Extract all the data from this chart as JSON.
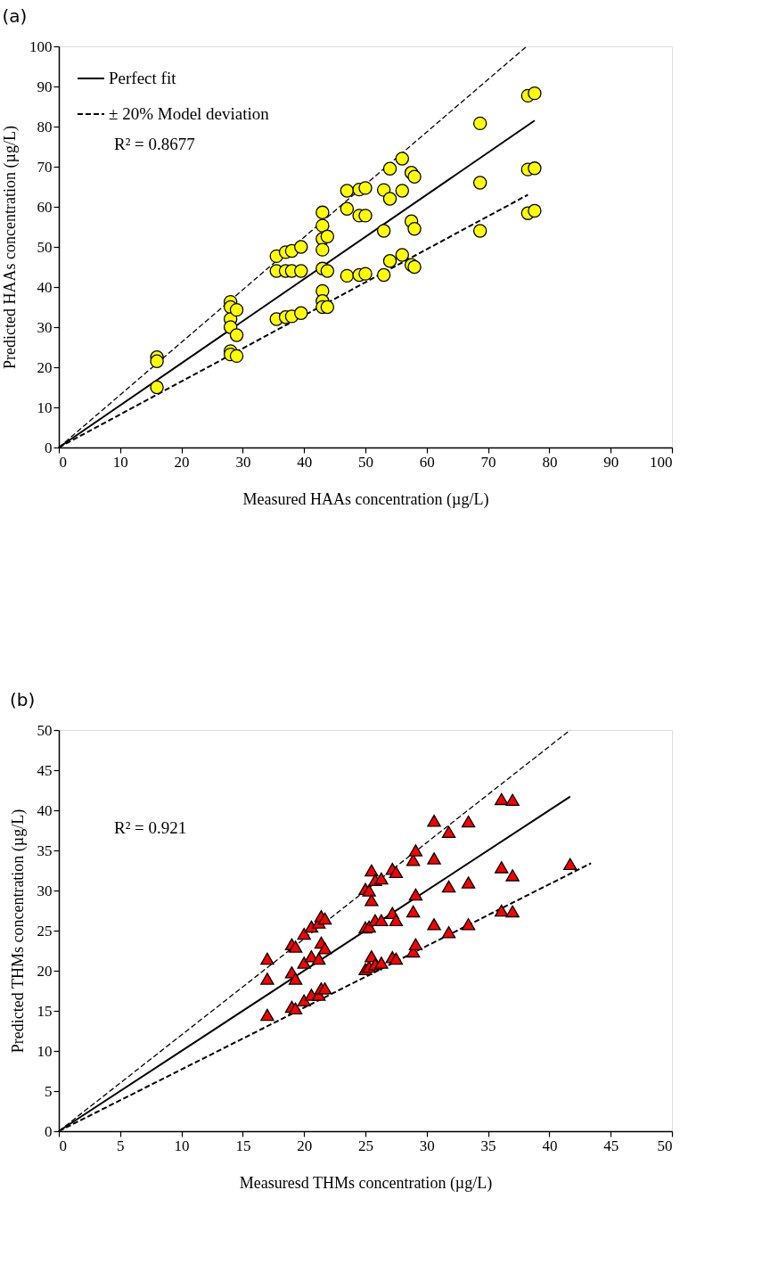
{
  "chart_data": [
    {
      "type": "scatter",
      "title": "(a)",
      "xlabel": "Measured HAAs concentration (µg/L)",
      "ylabel": "Predicted HAAs concentration (µg/L)",
      "xlim": [
        0,
        100
      ],
      "ylim": [
        0,
        100
      ],
      "xticks": [
        0,
        10,
        20,
        30,
        40,
        50,
        60,
        70,
        80,
        90,
        100
      ],
      "yticks": [
        0,
        10,
        20,
        30,
        40,
        50,
        60,
        70,
        80,
        90,
        100
      ],
      "grid": false,
      "legend": "top left",
      "annotations": [
        "R² = 0.8677"
      ],
      "series": [
        {
          "name": "Perfect fit",
          "type": "line",
          "color": "#000000",
          "line_style": "solid",
          "x": [
            0,
            77.6
          ],
          "values": [
            0,
            81.5
          ]
        },
        {
          "name": "± 20% Model deviation",
          "type": "line",
          "color": "#000000",
          "line_style": "dashed",
          "x": [
            0,
            76.5
          ],
          "values": [
            0,
            63
          ]
        },
        {
          "type": "line",
          "color": "#000000",
          "line_style": "dashed",
          "x": [
            0,
            76.3
          ],
          "values": [
            0,
            100
          ]
        },
        {
          "color": "#ffff00",
          "marker": "circle",
          "x": [
            16,
            16,
            16,
            28,
            28,
            28,
            28,
            28,
            28,
            29,
            29,
            29,
            35.5,
            35.5,
            35.5,
            37,
            37,
            37,
            38,
            38,
            38,
            39.5,
            39.5,
            39.5,
            43,
            43,
            43,
            43,
            43,
            43,
            43,
            43,
            43.8,
            43.8,
            43.8,
            47,
            47,
            47,
            49,
            49,
            49,
            50,
            50,
            50,
            53,
            53,
            53,
            54,
            54,
            54,
            56,
            56,
            56,
            57.5,
            57.5,
            57.5,
            58,
            58,
            58,
            68.7,
            68.7,
            68.7,
            76.5,
            76.5,
            76.5,
            77.6,
            77.6,
            77.6
          ],
          "values": [
            22.5,
            21.5,
            15,
            36.3,
            35,
            32,
            30,
            24,
            23.2,
            34.3,
            28,
            22.8,
            47.7,
            44,
            32,
            48.7,
            44,
            32.5,
            49,
            44,
            32.7,
            50,
            44,
            33.5,
            58.6,
            55.3,
            52,
            49.3,
            44.6,
            39,
            36.5,
            35,
            52.6,
            44,
            35,
            64,
            59.5,
            42.8,
            64.3,
            57.8,
            43,
            64.7,
            57.8,
            43.3,
            64.2,
            54,
            43,
            69.5,
            62,
            46.5,
            72,
            64,
            48,
            68.5,
            56.4,
            45.5,
            67.5,
            54.5,
            45,
            80.8,
            66,
            54,
            87.7,
            69.3,
            58.4,
            88.3,
            69.6,
            59
          ]
        }
      ]
    },
    {
      "type": "scatter",
      "title": "(b)",
      "xlabel": "Measuresd THMs concentration (µg/L)",
      "ylabel": "Predicted  THMs concentration (µg/L)",
      "xlim": [
        0,
        50
      ],
      "ylim": [
        0,
        50
      ],
      "xticks": [
        0,
        5,
        10,
        15,
        20,
        25,
        30,
        35,
        40,
        45,
        50
      ],
      "yticks": [
        0,
        5,
        10,
        15,
        20,
        25,
        30,
        35,
        40,
        45,
        50
      ],
      "grid": false,
      "legend": "top left",
      "annotations": [
        "R² = 0.921"
      ],
      "series": [
        {
          "name": "Perfect fit",
          "type": "line",
          "color": "#000000",
          "line_style": "solid",
          "x": [
            0,
            41.7
          ],
          "values": [
            0,
            41.7
          ]
        },
        {
          "name": "± 20% Model deviation",
          "type": "line",
          "color": "#000000",
          "line_style": "dashed",
          "x": [
            0,
            43.4
          ],
          "values": [
            0,
            33.4
          ]
        },
        {
          "type": "line",
          "color": "#000000",
          "line_style": "dashed",
          "x": [
            0,
            41.7
          ],
          "values": [
            0,
            50
          ]
        },
        {
          "color": "#ff0000",
          "marker": "triangle",
          "x": [
            17,
            17,
            17,
            19,
            19,
            19,
            19.3,
            19.3,
            19.3,
            20,
            20,
            20,
            20.6,
            20.6,
            20.6,
            21.2,
            21.2,
            21.2,
            21.4,
            21.4,
            21.4,
            21.7,
            21.7,
            21.7,
            25,
            25,
            25,
            25.3,
            25.3,
            25.3,
            25.5,
            25.5,
            25.5,
            25.8,
            25.8,
            25.8,
            26.3,
            26.3,
            26.3,
            27.2,
            27.2,
            27.2,
            27.5,
            27.5,
            27.5,
            28.9,
            28.9,
            28.9,
            29.1,
            29.1,
            29.1,
            30.6,
            30.6,
            30.6,
            31.8,
            31.8,
            31.8,
            33.4,
            33.4,
            33.4,
            36.1,
            36.1,
            36.1,
            37,
            37,
            37,
            41.7
          ],
          "values": [
            21.5,
            19,
            14.5,
            23.3,
            19.8,
            15.5,
            23,
            19,
            15.3,
            24.6,
            21,
            16.3,
            25.5,
            21.8,
            17,
            26,
            21.5,
            17,
            26.8,
            23.5,
            17.8,
            26.5,
            22.8,
            17.8,
            30.2,
            25.4,
            20.2,
            30,
            25.5,
            20.5,
            32.5,
            28.8,
            21.8,
            31.3,
            26.3,
            20.8,
            31.5,
            26.3,
            21,
            32.7,
            27.2,
            21.7,
            32.3,
            26.3,
            21.5,
            33.8,
            27.4,
            22.4,
            35,
            29.5,
            23.3,
            38.7,
            34,
            25.8,
            37.3,
            30.5,
            24.8,
            38.6,
            31,
            25.8,
            41.4,
            32.9,
            27.5,
            41.3,
            31.9,
            27.4,
            33.3
          ]
        }
      ]
    }
  ]
}
